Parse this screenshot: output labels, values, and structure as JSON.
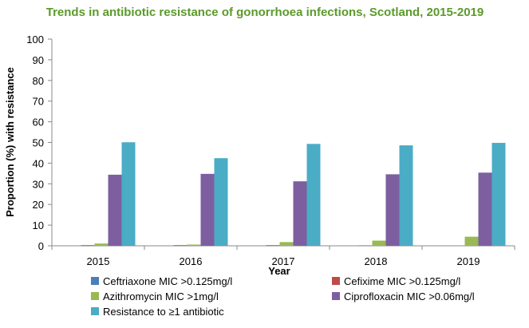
{
  "colors": {
    "title": "#5b9a2a",
    "axis": "#888888",
    "grid": "#d9d9d9"
  },
  "chart_data": {
    "type": "bar",
    "title": "Trends in antibiotic resistance of gonorrhoea infections, Scotland, 2015-2019",
    "xlabel": "Year",
    "ylabel": "Proportion (%) with resistance",
    "ylim": [
      0,
      100
    ],
    "yticks": [
      0,
      10,
      20,
      30,
      40,
      50,
      60,
      70,
      80,
      90,
      100
    ],
    "categories": [
      "2015",
      "2016",
      "2017",
      "2018",
      "2019"
    ],
    "grid": false,
    "legend_position": "bottom",
    "series": [
      {
        "name": "Ceftriaxone MIC >0.125mg/l",
        "color": "#4a7ebb",
        "values": [
          0,
          0,
          0,
          0,
          0
        ]
      },
      {
        "name": "Cefixime MIC >0.125mg/l",
        "color": "#be4b48",
        "values": [
          0.3,
          0.3,
          0.3,
          0.2,
          0
        ]
      },
      {
        "name": "Azithromycin MIC >1mg/l",
        "color": "#98b954",
        "values": [
          1.1,
          0.6,
          1.8,
          2.5,
          4.4
        ]
      },
      {
        "name": "Ciprofloxacin MIC >0.06mg/l",
        "color": "#7d5fa0",
        "values": [
          34.4,
          34.8,
          31.2,
          34.6,
          35.4
        ]
      },
      {
        "name": "Resistance to ≥1 antibiotic",
        "color": "#4bacc6",
        "values": [
          50.1,
          42.4,
          49.3,
          48.6,
          49.8
        ]
      }
    ]
  }
}
